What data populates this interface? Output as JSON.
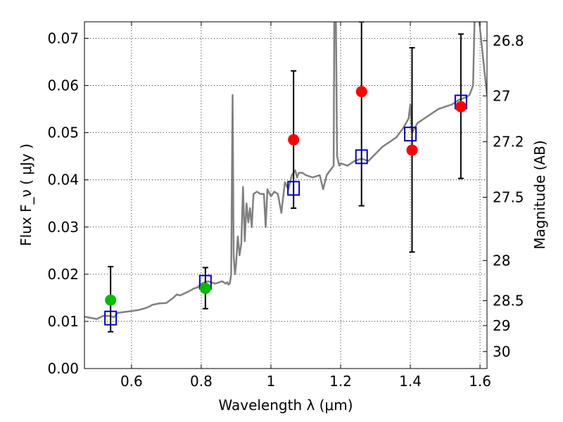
{
  "chart_data": {
    "type": "scatter",
    "xlabel": "Wavelength  λ (μm)",
    "ylabel": "Flux  F_ν  ( μJy )",
    "ylabel_right": "Magnitude (AB)",
    "xlim": [
      0.465,
      1.62
    ],
    "ylim": [
      0.0,
      0.0735
    ],
    "grid": true,
    "xticks": [
      0.6,
      0.8,
      1.0,
      1.2,
      1.4,
      1.6
    ],
    "xtick_labels": [
      "0.6",
      "0.8",
      "1",
      "1.2",
      "1.4",
      "1.6"
    ],
    "yticks": [
      0.0,
      0.01,
      0.02,
      0.03,
      0.04,
      0.05,
      0.06,
      0.07
    ],
    "ytick_labels": [
      "0.00",
      "0.01",
      "0.02",
      "0.03",
      "0.04",
      "0.05",
      "0.06",
      "0.07"
    ],
    "right_ticks": [
      {
        "flux": 0.0695,
        "label": "26.8"
      },
      {
        "flux": 0.0578,
        "label": "27"
      },
      {
        "flux": 0.0481,
        "label": "27.2"
      },
      {
        "flux": 0.0363,
        "label": "27.5"
      },
      {
        "flux": 0.0229,
        "label": "28"
      },
      {
        "flux": 0.0144,
        "label": "28.5"
      },
      {
        "flux": 0.0091,
        "label": "29"
      },
      {
        "flux": 0.0036,
        "label": "30"
      }
    ],
    "series": [
      {
        "name": "model spectrum",
        "kind": "line",
        "color": "#808080",
        "x": [
          0.465,
          0.48,
          0.5,
          0.52,
          0.54,
          0.55,
          0.56,
          0.58,
          0.6,
          0.62,
          0.64,
          0.65,
          0.66,
          0.68,
          0.7,
          0.72,
          0.73,
          0.74,
          0.76,
          0.78,
          0.79,
          0.8,
          0.82,
          0.84,
          0.86,
          0.87,
          0.875,
          0.878,
          0.882,
          0.886,
          0.89,
          0.893,
          0.897,
          0.9,
          0.905,
          0.91,
          0.915,
          0.92,
          0.925,
          0.93,
          0.935,
          0.94,
          0.945,
          0.95,
          0.96,
          0.97,
          0.98,
          0.985,
          0.99,
          1.0,
          1.01,
          1.02,
          1.03,
          1.04,
          1.05,
          1.06,
          1.07,
          1.075,
          1.08,
          1.09,
          1.1,
          1.12,
          1.14,
          1.15,
          1.16,
          1.17,
          1.18,
          1.182,
          1.186,
          1.19,
          1.193,
          1.196,
          1.2,
          1.22,
          1.24,
          1.26,
          1.28,
          1.3,
          1.32,
          1.34,
          1.36,
          1.38,
          1.395,
          1.4,
          1.405,
          1.42,
          1.44,
          1.46,
          1.48,
          1.5,
          1.52,
          1.54,
          1.56,
          1.57,
          1.58,
          1.585,
          1.59,
          1.595,
          1.6,
          1.61,
          1.62
        ],
        "y": [
          0.011,
          0.0108,
          0.0105,
          0.0112,
          0.0111,
          0.0109,
          0.0118,
          0.012,
          0.0122,
          0.0124,
          0.0128,
          0.0131,
          0.0135,
          0.0138,
          0.0139,
          0.015,
          0.0157,
          0.0155,
          0.0162,
          0.017,
          0.0172,
          0.018,
          0.0185,
          0.018,
          0.0185,
          0.018,
          0.0183,
          0.0178,
          0.018,
          0.02,
          0.058,
          0.024,
          0.02,
          0.022,
          0.028,
          0.024,
          0.0265,
          0.0385,
          0.027,
          0.035,
          0.031,
          0.034,
          0.03,
          0.037,
          0.0375,
          0.037,
          0.037,
          0.03,
          0.038,
          0.0365,
          0.0375,
          0.037,
          0.033,
          0.0395,
          0.038,
          0.041,
          0.042,
          0.0405,
          0.0415,
          0.0415,
          0.041,
          0.0405,
          0.041,
          0.038,
          0.041,
          0.042,
          0.043,
          0.076,
          0.078,
          0.045,
          0.044,
          0.043,
          0.0435,
          0.043,
          0.044,
          0.0445,
          0.044,
          0.0455,
          0.047,
          0.048,
          0.049,
          0.051,
          0.053,
          0.056,
          0.05,
          0.052,
          0.053,
          0.054,
          0.055,
          0.0555,
          0.056,
          0.057,
          0.0575,
          0.058,
          0.06,
          0.076,
          0.074,
          0.076,
          0.072,
          0.065,
          0.058
        ]
      },
      {
        "name": "photometry red",
        "kind": "points",
        "marker": "circle",
        "color": "#ff0000",
        "x": [
          1.065,
          1.26,
          1.405,
          1.545
        ],
        "y": [
          0.0485,
          0.0587,
          0.0463,
          0.0555
        ]
      },
      {
        "name": "photometry green",
        "kind": "points",
        "marker": "circle",
        "color": "#00bb00",
        "x": [
          0.54,
          0.812
        ],
        "y": [
          0.0145,
          0.017
        ]
      },
      {
        "name": "model photometry",
        "kind": "points",
        "marker": "square-open",
        "color": "#0000cc",
        "x": [
          0.54,
          0.812,
          1.065,
          1.26,
          1.4,
          1.545
        ],
        "y": [
          0.0107,
          0.0183,
          0.0382,
          0.0449,
          0.0497,
          0.0565
        ]
      },
      {
        "name": "error bars",
        "kind": "errorbars",
        "color": "#000000",
        "x": [
          0.54,
          0.812,
          1.065,
          1.26,
          1.405,
          1.545
        ],
        "low": [
          0.0078,
          0.0127,
          0.034,
          0.0345,
          0.0247,
          0.0403
        ],
        "high": [
          0.0216,
          0.0214,
          0.0631,
          0.0735,
          0.068,
          0.0709
        ]
      }
    ]
  }
}
